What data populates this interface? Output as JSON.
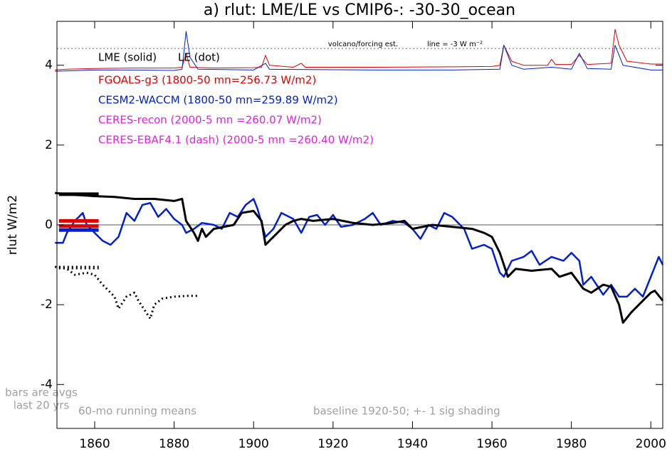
{
  "chart_data": {
    "type": "line",
    "title": "a) rlut: LME/LE vs CMIP6-: -30-30_ocean",
    "y_label": "rlut W/m2",
    "xlim": [
      1850.5,
      2003
    ],
    "xticks": [
      1860,
      1880,
      1900,
      1920,
      1940,
      1960,
      1980,
      2000
    ],
    "ylim": [
      -5.1,
      5.1
    ],
    "yticks": [
      -4,
      -2,
      0,
      2,
      4
    ],
    "zero_line": true,
    "ref_line": 4.42,
    "series": [
      {
        "name": "FGOALS-g3 (1800-50 mn=256.73 W/m2)",
        "color": "#e00000",
        "style": "solid",
        "width": 1,
        "x": [
          1850,
          1853,
          1860,
          1870,
          1880,
          1882,
          1883,
          1884,
          1890,
          1900,
          1902,
          1903,
          1904,
          1910,
          1912,
          1913,
          1930,
          1950,
          1960,
          1962,
          1963,
          1965,
          1968,
          1974,
          1975,
          1976,
          1980,
          1982,
          1984,
          1990,
          1991,
          1992,
          1994,
          2000,
          2003
        ],
        "values": [
          3.88,
          3.9,
          3.92,
          3.93,
          3.93,
          3.95,
          4.3,
          3.95,
          3.93,
          3.94,
          3.95,
          4.25,
          4.0,
          3.95,
          4.05,
          3.95,
          3.95,
          3.96,
          3.97,
          4.0,
          4.5,
          4.1,
          4.0,
          4.0,
          4.15,
          4.02,
          4.02,
          4.25,
          4.02,
          4.05,
          4.9,
          4.5,
          4.1,
          4.03,
          4.03
        ]
      },
      {
        "color": "#0020d0",
        "style": "solid",
        "width": 1,
        "x": [
          1850,
          1860,
          1870,
          1880,
          1882,
          1883,
          1884,
          1886,
          1900,
          1903,
          1904,
          1930,
          1950,
          1962,
          1963,
          1965,
          1968,
          1975,
          1980,
          1982,
          1984,
          1990,
          1991,
          1993,
          2000,
          2003
        ],
        "values": [
          3.85,
          3.88,
          3.88,
          3.87,
          3.9,
          4.85,
          4.2,
          3.9,
          3.88,
          4.05,
          3.9,
          3.88,
          3.88,
          3.9,
          4.5,
          4.0,
          3.9,
          3.95,
          3.9,
          4.3,
          3.92,
          3.9,
          4.5,
          4.0,
          3.88,
          3.88
        ]
      },
      {
        "name": "LE (dot)",
        "color": "#000000",
        "style": "dot",
        "width": 3,
        "x": [
          1850,
          1853,
          1855,
          1858,
          1860,
          1862,
          1865,
          1866,
          1868,
          1870,
          1871,
          1873,
          1874,
          1875,
          1877,
          1880,
          1883,
          1886
        ],
        "values": [
          -1.05,
          -1.1,
          -1.25,
          -1.2,
          -1.25,
          -1.5,
          -1.8,
          -2.1,
          -1.8,
          -1.7,
          -1.9,
          -2.2,
          -2.35,
          -2.0,
          -1.85,
          -1.8,
          -1.78,
          -1.78
        ]
      },
      {
        "name": "CESM2-WACCM (1800-50 mn=259.89 W/m2)",
        "color": "#0020d0",
        "style": "solid",
        "width": 2.5,
        "x": [
          1850,
          1852,
          1853,
          1855,
          1857,
          1858,
          1860,
          1862,
          1864,
          1866,
          1868,
          1870,
          1872,
          1874,
          1876,
          1878,
          1880,
          1882,
          1883,
          1885,
          1887,
          1890,
          1892,
          1894,
          1896,
          1898,
          1900,
          1901,
          1903,
          1905,
          1907,
          1910,
          1912,
          1914,
          1916,
          1918,
          1920,
          1922,
          1925,
          1928,
          1930,
          1932,
          1935,
          1938,
          1940,
          1942,
          1944,
          1946,
          1948,
          1950,
          1953,
          1955,
          1958,
          1960,
          1962,
          1963,
          1965,
          1968,
          1970,
          1972,
          1975,
          1978,
          1980,
          1982,
          1983,
          1985,
          1988,
          1990,
          1992,
          1994,
          1996,
          1998,
          2000,
          2002,
          2003
        ],
        "values": [
          -0.45,
          -0.45,
          -0.2,
          0.1,
          0.3,
          0.0,
          -0.2,
          -0.4,
          -0.5,
          -0.3,
          0.3,
          0.1,
          0.5,
          0.55,
          0.2,
          0.4,
          0.15,
          0.0,
          -0.2,
          -0.1,
          0.05,
          0.0,
          -0.1,
          0.3,
          0.2,
          0.5,
          0.65,
          0.4,
          -0.3,
          -0.1,
          0.3,
          0.15,
          -0.2,
          0.2,
          0.25,
          0.0,
          0.25,
          -0.05,
          0.0,
          0.15,
          0.3,
          0.0,
          0.1,
          0.05,
          -0.1,
          -0.35,
          0.0,
          -0.1,
          0.3,
          0.2,
          -0.1,
          -0.6,
          -0.5,
          -0.6,
          -1.2,
          -1.3,
          -0.9,
          -0.8,
          -0.65,
          -1.0,
          -0.8,
          -0.9,
          -0.7,
          -0.9,
          -1.5,
          -1.3,
          -1.75,
          -1.5,
          -1.8,
          -1.8,
          -1.6,
          -1.8,
          -1.3,
          -0.8,
          -1.0
        ]
      },
      {
        "name": "LME (solid)",
        "color": "#000000",
        "style": "solid",
        "width": 3,
        "x": [
          1850,
          1855,
          1860,
          1865,
          1870,
          1875,
          1880,
          1882,
          1883,
          1885,
          1886,
          1887,
          1888,
          1890,
          1895,
          1897,
          1900,
          1902,
          1903,
          1905,
          1908,
          1910,
          1912,
          1915,
          1920,
          1925,
          1930,
          1935,
          1938,
          1940,
          1945,
          1950,
          1955,
          1958,
          1960,
          1962,
          1964,
          1966,
          1970,
          1975,
          1977,
          1980,
          1983,
          1985,
          1988,
          1990,
          1992,
          1993,
          1995,
          1997,
          2000,
          2001,
          2003
        ],
        "values": [
          0.8,
          0.75,
          0.72,
          0.7,
          0.65,
          0.65,
          0.6,
          0.65,
          0.1,
          -0.2,
          -0.4,
          -0.1,
          -0.3,
          -0.1,
          0.0,
          0.3,
          0.35,
          0.1,
          -0.5,
          -0.3,
          0.0,
          0.1,
          0.15,
          0.1,
          0.15,
          0.05,
          0.0,
          0.05,
          0.1,
          -0.1,
          0.0,
          -0.05,
          -0.1,
          -0.2,
          -0.3,
          -0.7,
          -1.3,
          -1.1,
          -1.15,
          -1.1,
          -1.3,
          -1.2,
          -1.6,
          -1.7,
          -1.5,
          -1.55,
          -2.0,
          -2.45,
          -2.2,
          -2.0,
          -1.7,
          -1.65,
          -1.9
        ]
      }
    ],
    "avg_bars": {
      "x": [
        1851,
        1861
      ],
      "bars": [
        {
          "color": "#000000",
          "value": 0.77
        },
        {
          "color": "#e00000",
          "value": 0.1
        },
        {
          "color": "#e00000",
          "value": -0.03
        },
        {
          "color": "#0020d0",
          "value": -0.13
        },
        {
          "color": "#000000",
          "value": -1.07,
          "style": "dot"
        }
      ]
    },
    "annotations": [
      {
        "text": "CERES-recon (2000-5 mn =260.07 W/m2)",
        "color": "#e020e0"
      },
      {
        "text": "CERES-EBAF4.1 (dash) (2000-5 mn =260.40 W/m2)",
        "color": "#e020e0"
      }
    ],
    "notes": {
      "volcano": "volcano/forcing est.",
      "line": "line = -3 W m⁻²",
      "bars1": "bars are avgs",
      "bars2": "last 20 yrs",
      "running": "60-mo running means",
      "baseline": "baseline 1920-50; +- 1 sig shading"
    }
  }
}
